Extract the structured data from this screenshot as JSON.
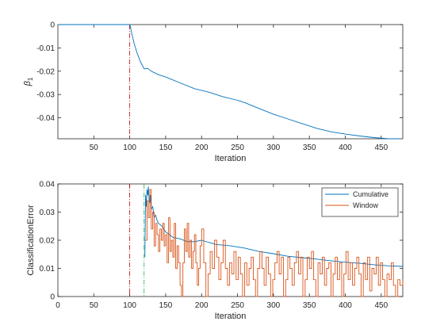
{
  "colors": {
    "cumulative": "#0072BD",
    "window": "#D95319",
    "vline_red": "#C00000",
    "vline_green": "#22B14C",
    "axis": "#262626"
  },
  "chart_data": [
    {
      "type": "line",
      "xlabel": "Iteration",
      "ylabel_symbol": "β",
      "ylabel_subscript": "1",
      "xlim": [
        0,
        480
      ],
      "ylim": [
        -0.049,
        0
      ],
      "xticks": [
        50,
        100,
        150,
        200,
        250,
        300,
        350,
        400,
        450
      ],
      "yticks": [
        0,
        -0.01,
        -0.02,
        -0.03,
        -0.04
      ],
      "ytick_labels": [
        "0",
        "-0.01",
        "-0.02",
        "-0.03",
        "-0.04"
      ],
      "vlines": [
        {
          "x": 100,
          "style": "dash-dot",
          "color": "red"
        }
      ],
      "series": [
        {
          "color": "blue",
          "x": [
            0,
            100,
            101,
            103,
            106,
            110,
            115,
            120,
            125,
            130,
            140,
            150,
            170,
            190,
            210,
            230,
            250,
            260,
            280,
            300,
            320,
            340,
            360,
            380,
            400,
            420,
            440,
            460,
            475
          ],
          "y": [
            0,
            0,
            -0.001,
            -0.004,
            -0.008,
            -0.012,
            -0.016,
            -0.019,
            -0.0188,
            -0.02,
            -0.0215,
            -0.0225,
            -0.025,
            -0.0275,
            -0.029,
            -0.031,
            -0.0325,
            -0.0335,
            -0.036,
            -0.0385,
            -0.0405,
            -0.0425,
            -0.0445,
            -0.046,
            -0.047,
            -0.0478,
            -0.0485,
            -0.049,
            -0.049
          ]
        }
      ]
    },
    {
      "type": "line",
      "xlabel": "Iteration",
      "ylabel": "ClassificationError",
      "xlim": [
        0,
        480
      ],
      "ylim": [
        0,
        0.04
      ],
      "xticks": [
        0,
        50,
        100,
        150,
        200,
        250,
        300,
        350,
        400,
        450
      ],
      "yticks": [
        0,
        0.01,
        0.02,
        0.03,
        0.04
      ],
      "ytick_labels": [
        "0",
        "0.01",
        "0.02",
        "0.03",
        "0.04"
      ],
      "legend_position": "top-right",
      "vlines": [
        {
          "x": 100,
          "style": "dash-dot",
          "color": "red"
        },
        {
          "x": 120,
          "style": "dash-dot",
          "color": "green"
        }
      ],
      "series": [
        {
          "name": "Cumulative",
          "color": "blue",
          "x": [
            121,
            122,
            123,
            124,
            125,
            126,
            127,
            128,
            129,
            130,
            132,
            134,
            136,
            138,
            140,
            145,
            150,
            155,
            160,
            170,
            180,
            190,
            200,
            220,
            240,
            260,
            280,
            300,
            320,
            340,
            360,
            380,
            400,
            420,
            440,
            460,
            480
          ],
          "y": [
            0.014,
            0.036,
            0.032,
            0.038,
            0.036,
            0.039,
            0.034,
            0.033,
            0.036,
            0.031,
            0.032,
            0.028,
            0.029,
            0.027,
            0.026,
            0.025,
            0.023,
            0.022,
            0.021,
            0.0205,
            0.0195,
            0.0195,
            0.02,
            0.0185,
            0.018,
            0.0172,
            0.016,
            0.0152,
            0.0143,
            0.0138,
            0.0133,
            0.0127,
            0.0122,
            0.0118,
            0.0113,
            0.0109,
            0.0107
          ]
        },
        {
          "name": "Window",
          "color": "orange",
          "x": [
            122,
            124,
            126,
            128,
            130,
            132,
            134,
            136,
            138,
            140,
            142,
            144,
            146,
            148,
            150,
            152,
            154,
            156,
            158,
            160,
            162,
            164,
            166,
            168,
            170,
            172,
            174,
            176,
            178,
            180,
            182,
            184,
            186,
            188,
            190,
            192,
            194,
            196,
            198,
            200,
            203,
            206,
            209,
            212,
            215,
            218,
            221,
            224,
            227,
            230,
            233,
            236,
            239,
            242,
            245,
            248,
            251,
            254,
            257,
            260,
            263,
            266,
            269,
            272,
            275,
            278,
            281,
            284,
            287,
            290,
            293,
            296,
            299,
            302,
            305,
            308,
            311,
            314,
            317,
            320,
            323,
            326,
            329,
            332,
            335,
            338,
            341,
            344,
            347,
            350,
            353,
            356,
            359,
            362,
            365,
            368,
            371,
            374,
            377,
            380,
            383,
            386,
            389,
            392,
            395,
            398,
            401,
            404,
            407,
            410,
            413,
            416,
            419,
            422,
            425,
            428,
            431,
            434,
            437,
            440,
            443,
            446,
            449,
            452,
            455,
            458,
            461,
            464,
            467,
            470,
            473,
            476,
            480
          ],
          "y": [
            0.02,
            0.034,
            0.028,
            0.038,
            0.024,
            0.03,
            0.018,
            0.026,
            0.022,
            0.016,
            0.024,
            0.02,
            0.026,
            0.018,
            0.022,
            0.012,
            0.028,
            0.016,
            0.02,
            0.014,
            0.026,
            0.01,
            0.018,
            0.012,
            0.004,
            0.0,
            0.012,
            0.024,
            0.016,
            0.026,
            0.014,
            0.02,
            0.01,
            0.016,
            0.022,
            0.012,
            0.004,
            0.01,
            0.018,
            0.024,
            0.012,
            0.0,
            0.008,
            0.016,
            0.01,
            0.02,
            0.014,
            0.006,
            0.012,
            0.02,
            0.01,
            0.004,
            0.012,
            0.008,
            0.016,
            0.006,
            0.014,
            0.008,
            0.0,
            0.012,
            0.004,
            0.01,
            0.014,
            0.006,
            0.0,
            0.01,
            0.016,
            0.01,
            0.004,
            0.014,
            0.008,
            0.0,
            0.006,
            0.012,
            0.016,
            0.008,
            0.014,
            0.0,
            0.006,
            0.014,
            0.01,
            0.004,
            0.012,
            0.016,
            0.008,
            0.014,
            0.0,
            0.006,
            0.014,
            0.01,
            0.016,
            0.006,
            0.0,
            0.012,
            0.008,
            0.014,
            0.004,
            0.01,
            0.012,
            0.0,
            0.008,
            0.014,
            0.006,
            0.012,
            0.0,
            0.008,
            0.016,
            0.006,
            0.012,
            0.004,
            0.01,
            0.014,
            0.008,
            0.0,
            0.012,
            0.006,
            0.014,
            0.002,
            0.01,
            0.008,
            0.014,
            0.004,
            0.012,
            0.006,
            0.0,
            0.008,
            0.006,
            0.012,
            0.004,
            0.0,
            0.006,
            0.004,
            0.006
          ]
        }
      ]
    }
  ]
}
